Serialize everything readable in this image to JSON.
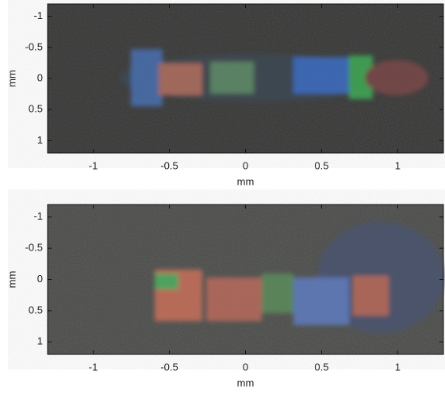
{
  "chart_data": [
    {
      "type": "image",
      "xlabel": "mm",
      "ylabel": "mm",
      "xlim": [
        -1.3,
        1.3
      ],
      "ylim": [
        -1.2,
        1.2
      ],
      "y_inverted": true,
      "xticks": [
        -1,
        -0.5,
        0,
        0.5,
        1
      ],
      "yticks": [
        -1,
        -0.5,
        0,
        0.5,
        1
      ]
    },
    {
      "type": "image",
      "xlabel": "mm",
      "ylabel": "mm",
      "xlim": [
        -1.3,
        1.3
      ],
      "ylim": [
        -1.2,
        1.2
      ],
      "y_inverted": true,
      "xticks": [
        -1,
        -0.5,
        0,
        0.5,
        1
      ],
      "yticks": [
        -1,
        -0.5,
        0,
        0.5,
        1
      ]
    }
  ]
}
